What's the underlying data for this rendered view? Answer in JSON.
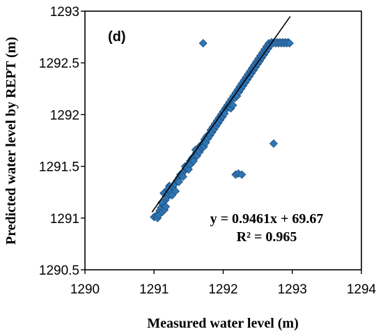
{
  "chart_data": {
    "type": "scatter",
    "panel_label": "(d)",
    "xlabel": "Measured water level (m)",
    "ylabel": "Predicted water level by REPT (m)",
    "xlim": [
      1290,
      1294
    ],
    "ylim": [
      1290.5,
      1293
    ],
    "x_ticks": [
      1290,
      1291,
      1292,
      1293,
      1294
    ],
    "y_ticks": [
      1290.5,
      1291,
      1291.5,
      1292,
      1292.5,
      1293
    ],
    "x_tick_labels": [
      "1290",
      "1291",
      "1292",
      "1293",
      "1294"
    ],
    "y_tick_labels": [
      "1290.5",
      "1291",
      "1291.5",
      "1292",
      "1292.5",
      "1293"
    ],
    "grid": false,
    "marker": "diamond",
    "marker_color": "#2e75b6",
    "marker_edge_color": "#1f4e79",
    "trendline": {
      "slope": 0.9461,
      "intercept": 69.67,
      "x_range": [
        1290.97,
        1292.97
      ],
      "color": "#000000"
    },
    "equation": "y = 0.9461x + 69.67",
    "r_squared": "R² = 0.965",
    "points": [
      [
        1291.0,
        1291.01
      ],
      [
        1291.03,
        1291.02
      ],
      [
        1291.06,
        1291.04
      ],
      [
        1291.08,
        1291.07
      ],
      [
        1291.1,
        1291.1
      ],
      [
        1291.13,
        1291.13
      ],
      [
        1291.16,
        1291.17
      ],
      [
        1291.19,
        1291.2
      ],
      [
        1291.21,
        1291.23
      ],
      [
        1291.24,
        1291.26
      ],
      [
        1291.27,
        1291.3
      ],
      [
        1291.3,
        1291.33
      ],
      [
        1291.33,
        1291.36
      ],
      [
        1291.36,
        1291.39
      ],
      [
        1291.4,
        1291.42
      ],
      [
        1291.43,
        1291.45
      ],
      [
        1291.46,
        1291.48
      ],
      [
        1291.49,
        1291.51
      ],
      [
        1291.52,
        1291.55
      ],
      [
        1291.55,
        1291.58
      ],
      [
        1291.58,
        1291.6
      ],
      [
        1291.61,
        1291.63
      ],
      [
        1291.64,
        1291.67
      ],
      [
        1291.67,
        1291.7
      ],
      [
        1291.7,
        1291.72
      ],
      [
        1291.73,
        1291.76
      ],
      [
        1291.76,
        1291.79
      ],
      [
        1291.79,
        1291.81
      ],
      [
        1291.82,
        1291.85
      ],
      [
        1291.85,
        1291.88
      ],
      [
        1291.88,
        1291.91
      ],
      [
        1291.91,
        1291.94
      ],
      [
        1291.94,
        1291.97
      ],
      [
        1291.97,
        1292.0
      ],
      [
        1292.0,
        1292.03
      ],
      [
        1292.03,
        1292.06
      ],
      [
        1292.06,
        1292.09
      ],
      [
        1292.09,
        1292.12
      ],
      [
        1292.12,
        1292.15
      ],
      [
        1292.15,
        1292.18
      ],
      [
        1292.18,
        1292.21
      ],
      [
        1292.21,
        1292.24
      ],
      [
        1292.24,
        1292.27
      ],
      [
        1292.27,
        1292.3
      ],
      [
        1292.3,
        1292.33
      ],
      [
        1292.33,
        1292.36
      ],
      [
        1292.36,
        1292.39
      ],
      [
        1292.39,
        1292.42
      ],
      [
        1292.42,
        1292.45
      ],
      [
        1292.45,
        1292.48
      ],
      [
        1292.48,
        1292.51
      ],
      [
        1292.51,
        1292.54
      ],
      [
        1292.54,
        1292.57
      ],
      [
        1292.57,
        1292.6
      ],
      [
        1292.6,
        1292.63
      ],
      [
        1292.63,
        1292.66
      ],
      [
        1292.66,
        1292.69
      ],
      [
        1292.7,
        1292.7
      ],
      [
        1292.74,
        1292.7
      ],
      [
        1292.78,
        1292.7
      ],
      [
        1292.82,
        1292.7
      ],
      [
        1292.86,
        1292.7
      ],
      [
        1292.9,
        1292.7
      ],
      [
        1292.94,
        1292.7
      ],
      [
        1291.05,
        1291.0
      ],
      [
        1291.07,
        1291.03
      ],
      [
        1291.12,
        1291.06
      ],
      [
        1291.15,
        1291.08
      ],
      [
        1291.11,
        1291.15
      ],
      [
        1291.17,
        1291.11
      ],
      [
        1291.22,
        1291.31
      ],
      [
        1291.14,
        1291.24
      ],
      [
        1291.2,
        1291.28
      ],
      [
        1291.26,
        1291.22
      ],
      [
        1291.31,
        1291.26
      ],
      [
        1291.36,
        1291.35
      ],
      [
        1291.38,
        1291.42
      ],
      [
        1291.42,
        1291.4
      ],
      [
        1291.45,
        1291.5
      ],
      [
        1291.5,
        1291.47
      ],
      [
        1291.53,
        1291.52
      ],
      [
        1291.57,
        1291.55
      ],
      [
        1291.62,
        1291.6
      ],
      [
        1291.6,
        1291.66
      ],
      [
        1291.66,
        1291.64
      ],
      [
        1291.69,
        1291.68
      ],
      [
        1291.72,
        1291.69
      ],
      [
        1291.75,
        1291.73
      ],
      [
        1291.78,
        1291.77
      ],
      [
        1291.81,
        1291.8
      ],
      [
        1291.84,
        1291.83
      ],
      [
        1291.87,
        1291.86
      ],
      [
        1291.9,
        1291.89
      ],
      [
        1291.93,
        1291.92
      ],
      [
        1291.96,
        1291.95
      ],
      [
        1291.99,
        1291.98
      ],
      [
        1292.02,
        1292.01
      ],
      [
        1292.05,
        1292.06
      ],
      [
        1292.08,
        1292.07
      ],
      [
        1292.11,
        1292.06
      ],
      [
        1292.14,
        1292.09
      ],
      [
        1292.17,
        1292.16
      ],
      [
        1292.2,
        1292.18
      ],
      [
        1292.23,
        1292.22
      ],
      [
        1292.26,
        1292.25
      ],
      [
        1292.29,
        1292.28
      ],
      [
        1292.32,
        1292.31
      ],
      [
        1292.35,
        1292.34
      ],
      [
        1292.38,
        1292.37
      ],
      [
        1292.41,
        1292.4
      ],
      [
        1292.44,
        1292.43
      ],
      [
        1292.47,
        1292.46
      ],
      [
        1292.5,
        1292.49
      ],
      [
        1292.53,
        1292.52
      ],
      [
        1292.56,
        1292.55
      ],
      [
        1292.59,
        1292.58
      ],
      [
        1292.62,
        1292.61
      ],
      [
        1292.65,
        1292.64
      ],
      [
        1292.68,
        1292.67
      ],
      [
        1292.72,
        1292.69
      ],
      [
        1292.76,
        1292.69
      ],
      [
        1292.8,
        1292.69
      ],
      [
        1292.84,
        1292.69
      ],
      [
        1292.88,
        1292.69
      ],
      [
        1292.92,
        1292.69
      ],
      [
        1292.96,
        1292.69
      ],
      [
        1291.71,
        1292.69
      ],
      [
        1292.73,
        1291.72
      ],
      [
        1292.18,
        1291.42
      ],
      [
        1292.22,
        1291.43
      ],
      [
        1292.27,
        1291.42
      ]
    ]
  }
}
